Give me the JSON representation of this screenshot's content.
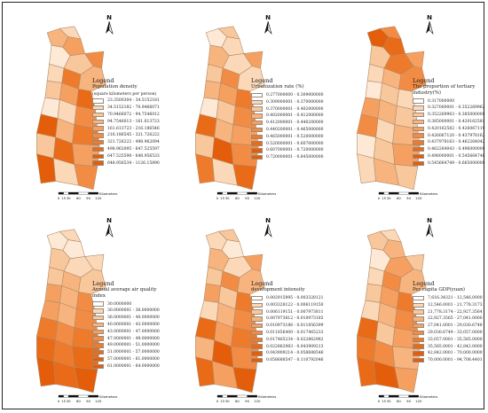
{
  "colors": {
    "ramp": [
      "#fde9d6",
      "#fbd8b8",
      "#f9c79c",
      "#f7b47f",
      "#f5a061",
      "#f28c45",
      "#ee7b2c",
      "#e96a17",
      "#e45d0a"
    ],
    "outline": "#b08a67"
  },
  "scale_labels": [
    "0",
    "15",
    "30",
    "60",
    "90",
    "120"
  ],
  "scale_unit": "Kilometers",
  "north_label": "N",
  "north_icon": "north-arrow-icon",
  "maps": [
    {
      "title": "Population density",
      "subtitle": "(square kilometers per person)",
      "classes": [
        "23.3500304 - 34.5152181",
        "34.5152182 - 70.9466071",
        "70.9466072 - 94.7546012",
        "94.7546013 - 161.613723",
        "161.613723 - 216.186546",
        "216.186545 - 321.726222",
        "321.726222 - 498.962094",
        "498.962095 - 647.525597",
        "647.525598 - 648.956533",
        "648.956534 - 1126.15890"
      ],
      "regions": [
        4,
        2,
        5,
        1,
        3,
        6,
        2,
        7,
        4,
        3,
        5,
        8,
        1,
        2,
        6,
        9,
        4,
        7,
        3,
        8,
        5,
        9,
        2,
        6
      ]
    },
    {
      "title": "Urbanization rate (%)",
      "subtitle": "",
      "classes": [
        "0.277000000 - 0.309000000",
        "0.309000001 - 0.370000000",
        "0.370000001 - 0.402000000",
        "0.402000001 - 0.412000000",
        "0.412000001 - 0.440200000",
        "0.440200001 - 0.465000000",
        "0.465000001 - 0.520000000",
        "0.520000001 - 0.607000000",
        "0.607000001 - 0.720000000",
        "0.720000001 - 0.845000000"
      ],
      "regions": [
        1,
        3,
        2,
        4,
        2,
        5,
        3,
        6,
        2,
        4,
        5,
        7,
        1,
        3,
        6,
        8,
        4,
        5,
        3,
        9,
        6,
        7,
        2,
        8
      ]
    },
    {
      "title": "The proportion of tertiary industry(%)",
      "subtitle": "",
      "classes": [
        "0.317000000",
        "0.327000001 - 0.352269962",
        "0.352269963 - 0.385000000",
        "0.385000001 - 0.420162581",
        "0.420162582 - 0.426067119",
        "0.426067120 - 0.437978162",
        "0.437978163 - 0.462264042",
        "0.462264043 - 0.496000000",
        "0.496000001 - 0.545664748",
        "0.545664749 - 0.665000000"
      ],
      "regions": [
        9,
        6,
        8,
        3,
        7,
        5,
        2,
        4,
        6,
        1,
        3,
        2,
        5,
        4,
        3,
        6,
        2,
        4,
        1,
        3,
        5,
        2,
        4,
        3
      ]
    },
    {
      "title": "Annual average air quality index",
      "subtitle": "",
      "classes": [
        "30.0000000",
        "30.0000001 - 36.0000000",
        "36.0000001 - 40.0000000",
        "40.0000001 - 43.0000000",
        "43.0000001 - 47.0000000",
        "47.0000001 - 49.0000000",
        "49.0000001 - 51.0000000",
        "51.0000001 - 57.0000000",
        "57.0000001 - 61.0000000",
        "61.0000001 - 64.0000000"
      ],
      "regions": [
        1,
        2,
        1,
        3,
        2,
        2,
        3,
        4,
        3,
        5,
        4,
        6,
        5,
        4,
        6,
        7,
        6,
        7,
        8,
        7,
        8,
        9,
        8,
        9
      ]
    },
    {
      "title": "development intensity",
      "subtitle": "",
      "classes": [
        "0.002915995 - 0.003328121",
        "0.003328122 - 0.006119150",
        "0.006119151 - 0.007973811",
        "0.007973812 - 0.010973185",
        "0.010973186 - 0.011856399",
        "0.011856400 - 0.017465233",
        "0.017465234 - 0.022862982",
        "0.022862983 - 0.043909213",
        "0.043909214 - 0.058688546",
        "0.058688547 - 0.110792046"
      ],
      "regions": [
        2,
        3,
        1,
        4,
        2,
        5,
        3,
        6,
        4,
        5,
        3,
        7,
        2,
        4,
        6,
        8,
        5,
        7,
        4,
        9,
        6,
        8,
        5,
        9
      ]
    },
    {
      "title": "Per capita GDP(yuan)",
      "subtitle": "",
      "classes": [
        "7,616.34321 - 12,546.0000",
        "12,546.0001 - 21,778.3173",
        "21,778.3174 - 22,927.3564",
        "22,927.3565 - 27,041.0000",
        "27,041.0001 - 29,030.6748",
        "29,030.6749 - 33,057.0000",
        "33,057.0001 - 35,585.0000",
        "35,585.0001 - 42,842.0000",
        "42,842.0001 - 70,000.0000",
        "70,000.0001 - 94,708.4401"
      ],
      "regions": [
        3,
        2,
        4,
        1,
        5,
        3,
        2,
        6,
        4,
        3,
        5,
        7,
        2,
        4,
        6,
        8,
        3,
        5,
        7,
        6,
        4,
        8,
        9,
        5
      ]
    }
  ]
}
